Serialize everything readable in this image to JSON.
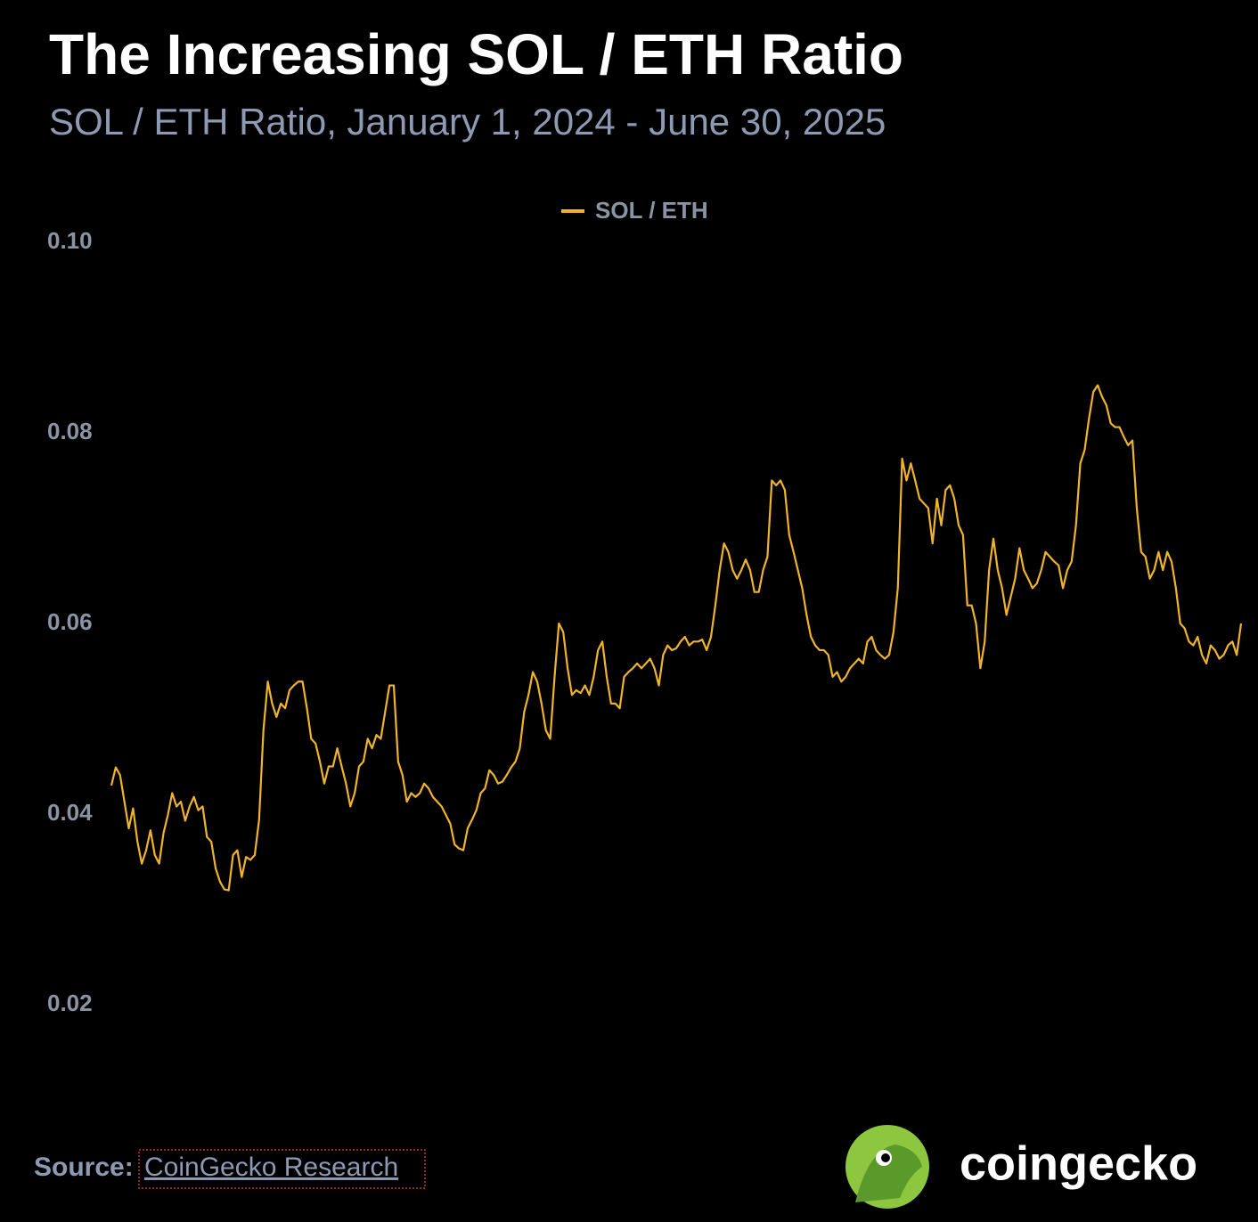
{
  "chart_data": {
    "type": "line",
    "title": "The Increasing SOL / ETH Ratio",
    "subtitle": "SOL / ETH Ratio, January 1, 2024 - June 30, 2025",
    "series": [
      {
        "name": "SOL / ETH",
        "color": "#f0b429",
        "values": [
          0.043,
          0.0449,
          0.0441,
          0.0413,
          0.0385,
          0.0406,
          0.0371,
          0.0348,
          0.0362,
          0.0383,
          0.0357,
          0.0348,
          0.038,
          0.0399,
          0.0422,
          0.0408,
          0.0413,
          0.0393,
          0.0408,
          0.0418,
          0.0404,
          0.0408,
          0.0376,
          0.0371,
          0.0343,
          0.0329,
          0.0321,
          0.032,
          0.0357,
          0.0362,
          0.0334,
          0.0355,
          0.0352,
          0.0357,
          0.0394,
          0.0488,
          0.0539,
          0.0516,
          0.0502,
          0.0516,
          0.0511,
          0.053,
          0.0535,
          0.0539,
          0.0539,
          0.0511,
          0.0479,
          0.0474,
          0.0455,
          0.0432,
          0.045,
          0.045,
          0.0469,
          0.045,
          0.0432,
          0.0408,
          0.0422,
          0.045,
          0.0455,
          0.0479,
          0.0469,
          0.0483,
          0.0479,
          0.0507,
          0.0535,
          0.0535,
          0.0455,
          0.0441,
          0.0413,
          0.0422,
          0.0418,
          0.0422,
          0.0432,
          0.0427,
          0.0418,
          0.0413,
          0.0408,
          0.0399,
          0.039,
          0.0368,
          0.0364,
          0.0362,
          0.0385,
          0.0394,
          0.0404,
          0.0422,
          0.0427,
          0.0446,
          0.0441,
          0.0432,
          0.0434,
          0.0441,
          0.0449,
          0.0455,
          0.0469,
          0.0507,
          0.0525,
          0.0549,
          0.0539,
          0.0516,
          0.0488,
          0.0479,
          0.0544,
          0.06,
          0.0591,
          0.0553,
          0.0525,
          0.053,
          0.0527,
          0.0535,
          0.0525,
          0.0544,
          0.0572,
          0.0581,
          0.0544,
          0.0516,
          0.0516,
          0.0511,
          0.0544,
          0.0549,
          0.0553,
          0.0558,
          0.0553,
          0.0558,
          0.0563,
          0.0553,
          0.0535,
          0.0567,
          0.0577,
          0.0572,
          0.0574,
          0.0581,
          0.0586,
          0.0577,
          0.0581,
          0.0581,
          0.0583,
          0.0572,
          0.0586,
          0.0619,
          0.0656,
          0.0684,
          0.0675,
          0.0656,
          0.0647,
          0.0656,
          0.0667,
          0.0656,
          0.0633,
          0.0633,
          0.0656,
          0.067,
          0.075,
          0.0745,
          0.075,
          0.074,
          0.0693,
          0.0675,
          0.0656,
          0.0637,
          0.0609,
          0.0586,
          0.0577,
          0.0572,
          0.0572,
          0.0567,
          0.0544,
          0.0549,
          0.0539,
          0.0544,
          0.0553,
          0.0558,
          0.0563,
          0.0558,
          0.0581,
          0.0586,
          0.0572,
          0.0567,
          0.0563,
          0.0567,
          0.0591,
          0.0637,
          0.0773,
          0.075,
          0.0768,
          0.075,
          0.0731,
          0.0726,
          0.0721,
          0.0684,
          0.0731,
          0.0703,
          0.074,
          0.0745,
          0.0731,
          0.0703,
          0.0693,
          0.0619,
          0.0619,
          0.06,
          0.0553,
          0.0581,
          0.0656,
          0.0689,
          0.0656,
          0.0637,
          0.0609,
          0.0628,
          0.0647,
          0.0679,
          0.0656,
          0.0647,
          0.0637,
          0.0642,
          0.0656,
          0.0675,
          0.067,
          0.0665,
          0.0661,
          0.0637,
          0.0656,
          0.0665,
          0.0703,
          0.0768,
          0.0782,
          0.0815,
          0.0843,
          0.085,
          0.0838,
          0.0829,
          0.081,
          0.0806,
          0.0806,
          0.0796,
          0.0787,
          0.0792,
          0.0721,
          0.0675,
          0.067,
          0.0647,
          0.0656,
          0.0675,
          0.0656,
          0.0675,
          0.0665,
          0.0637,
          0.06,
          0.0595,
          0.0581,
          0.0577,
          0.0586,
          0.0567,
          0.0558,
          0.0577,
          0.0572,
          0.0563,
          0.0567,
          0.0577,
          0.0581,
          0.0567,
          0.06
        ]
      }
    ],
    "ylim": [
      0.01,
      0.1
    ],
    "yticks": [
      0.02,
      0.04,
      0.06,
      0.08,
      {
        "value": 0.1,
        "label": "0.10"
      }
    ],
    "grid": false,
    "legend": "top"
  },
  "source": {
    "label": "Source:",
    "link": "CoinGecko Research"
  },
  "logo": {
    "text": "coingecko"
  }
}
